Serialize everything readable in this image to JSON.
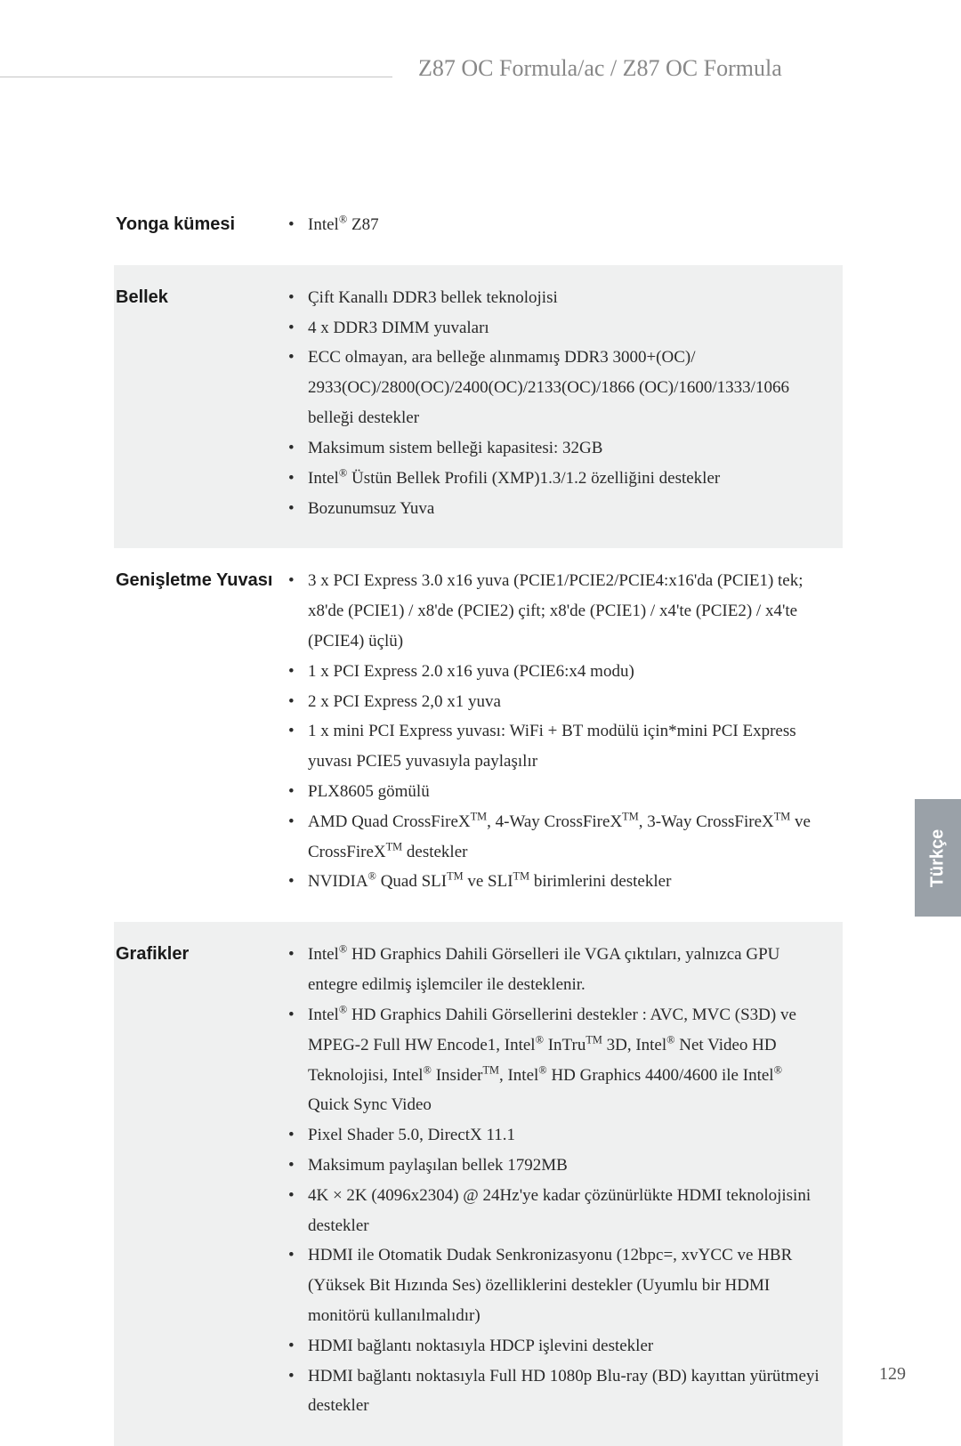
{
  "header": {
    "title": "Z87 OC Formula/ac / Z87 OC Formula"
  },
  "side_tab": "Türkçe",
  "page_number": "129",
  "colors": {
    "page_bg": "#ffffff",
    "shaded_row_bg": "#eff0f0",
    "header_text": "#888888",
    "body_text": "#2a2a2a",
    "label_text": "#1a1a1a",
    "side_tab_bg": "#9aa1a8",
    "side_tab_text": "#ffffff",
    "divider": "#c5c5c5"
  },
  "typography": {
    "header_fontsize": 26,
    "label_fontsize": 20,
    "body_fontsize": 19,
    "body_line_height": 1.78,
    "label_font_family": "Arial",
    "body_font_family": "Georgia"
  },
  "rows": [
    {
      "label": "Yonga kümesi",
      "shaded": false,
      "items": [
        "Intel<span class='sup'>®</span> Z87"
      ]
    },
    {
      "label": "Bellek",
      "shaded": true,
      "items": [
        "Çift Kanallı DDR3 bellek teknolojisi",
        "4 x DDR3 DIMM yuvaları",
        "ECC olmayan, ara belleğe alınmamış DDR3 3000+(OC)/ 2933(OC)/2800(OC)/2400(OC)/2133(OC)/1866 (OC)/1600/1333/1066 belleği destekler",
        "Maksimum sistem belleği kapasitesi: 32GB",
        "Intel<span class='sup'>®</span> Üstün Bellek Profili (XMP)1.3/1.2 özelliğini destekler",
        "Bozunumsuz Yuva"
      ]
    },
    {
      "label": "Genişletme Yuvası",
      "shaded": false,
      "items": [
        "3 x PCI Express 3.0 x16 yuva (PCIE1/PCIE2/PCIE4:x16'da (PCIE1) tek; x8'de (PCIE1) / x8'de (PCIE2) çift; x8'de (PCIE1) / x4'te (PCIE2) / x4'te (PCIE4) üçlü)",
        "1 x PCI Express 2.0 x16 yuva (PCIE6:x4 modu)",
        "2 x PCI Express 2,0 x1 yuva",
        "1 x mini PCI Express yuvası: WiFi + BT modülü için*mini PCI Express yuvası PCIE5 yuvasıyla paylaşılır",
        "PLX8605 gömülü",
        "AMD Quad CrossFireX<span class='sup'>TM</span>, 4-Way CrossFireX<span class='sup'>TM</span>, 3-Way CrossFireX<span class='sup'>TM</span> ve CrossFireX<span class='sup'>TM</span> destekler",
        "NVIDIA<span class='sup'>®</span> Quad SLI<span class='sup'>TM</span> ve SLI<span class='sup'>TM</span> birimlerini destekler"
      ]
    },
    {
      "label": "Grafikler",
      "shaded": true,
      "items": [
        "Intel<span class='sup'>®</span> HD Graphics Dahili Görselleri ile VGA çıktıları, yalnızca GPU entegre edilmiş işlemciler ile desteklenir.",
        "Intel<span class='sup'>®</span> HD Graphics Dahili Görsellerini destekler : AVC, MVC (S3D) ve MPEG-2 Full HW Encode1, Intel<span class='sup'>®</span> InTru<span class='sup'>TM</span> 3D, Intel<span class='sup'>®</span> Net Video HD Teknolojisi, Intel<span class='sup'>®</span> Insider<span class='sup'>TM</span>, Intel<span class='sup'>®</span> HD Graphics 4400/4600 ile Intel<span class='sup'>®</span> Quick Sync Video",
        "Pixel Shader 5.0, DirectX 11.1",
        "Maksimum paylaşılan bellek 1792MB",
        "4K × 2K (4096x2304) @ 24Hz'ye kadar çözünürlükte HDMI teknolojisini destekler",
        "HDMI ile Otomatik Dudak Senkronizasyonu (12bpc=, xvYCC ve HBR (Yüksek Bit Hızında Ses) özelliklerini destekler (Uyumlu bir HDMI monitörü kullanılmalıdır)",
        "HDMI bağlantı noktasıyla HDCP işlevini destekler",
        "HDMI bağlantı noktasıyla Full HD 1080p Blu-ray (BD) kayıttan yürütmeyi destekler"
      ]
    }
  ]
}
